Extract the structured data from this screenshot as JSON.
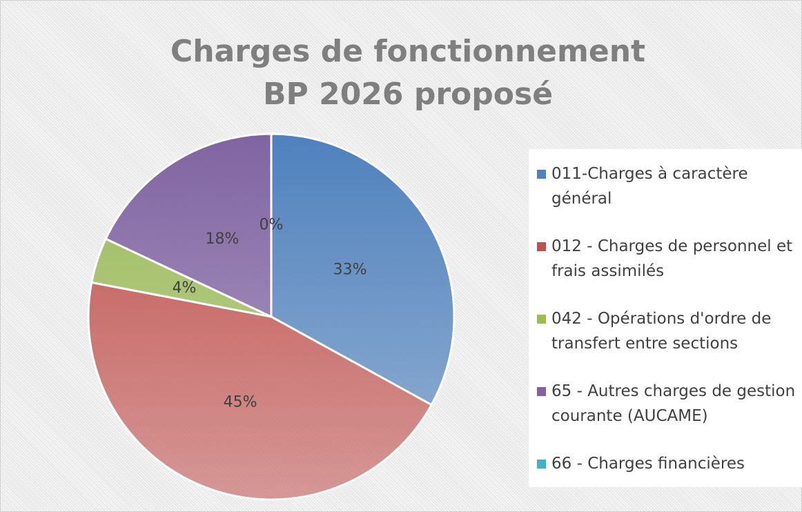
{
  "chart_data": {
    "type": "pie",
    "title": [
      "Charges de fonctionnement",
      "BP 2026 proposé"
    ],
    "categories": [
      "011-Charges à caractère général",
      "012 - Charges de personnel et frais assimilés",
      "042 - Opérations d'ordre de transfert entre sections",
      "65 - Autres charges de gestion courante (AUCAME)",
      "66 - Charges financières"
    ],
    "values": [
      33,
      45,
      4,
      18,
      0
    ],
    "value_labels": [
      "33%",
      "45%",
      "4%",
      "18%",
      "0%"
    ],
    "colors": [
      "#4f81bd",
      "#c0504d",
      "#9bbb59",
      "#8064a2",
      "#4bacc6"
    ],
    "legend": "right"
  }
}
